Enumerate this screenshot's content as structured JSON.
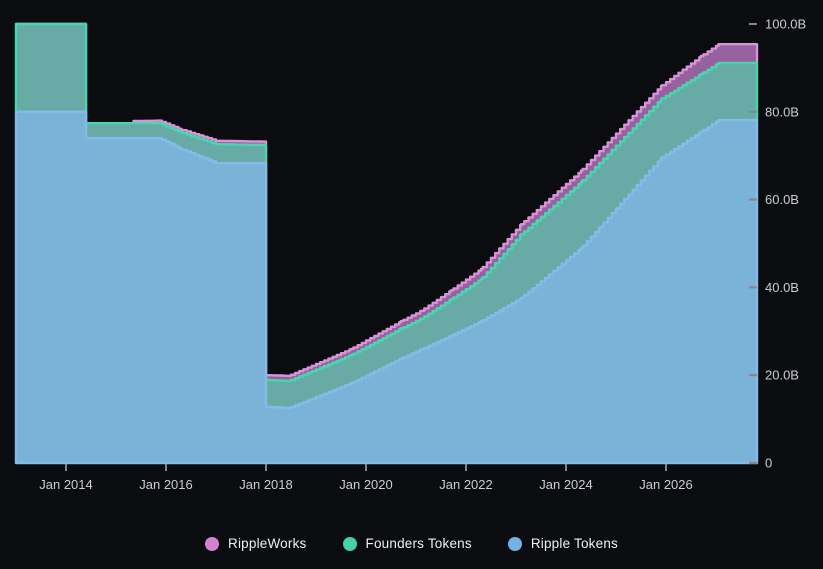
{
  "chart_data": {
    "type": "area",
    "stacked": true,
    "title": "",
    "background": "#0a0c10",
    "x_axis": {
      "range_years": [
        2013.0,
        2027.82
      ],
      "ticks": [
        {
          "t": 2014,
          "label": "Jan 2014"
        },
        {
          "t": 2016,
          "label": "Jan 2016"
        },
        {
          "t": 2018,
          "label": "Jan 2018"
        },
        {
          "t": 2020,
          "label": "Jan 2020"
        },
        {
          "t": 2022,
          "label": "Jan 2022"
        },
        {
          "t": 2024,
          "label": "Jan 2024"
        },
        {
          "t": 2026,
          "label": "Jan 2026"
        }
      ]
    },
    "y_axis": {
      "range": [
        0,
        105.5
      ],
      "unit": "tokens (billions)",
      "ticks": [
        {
          "v": 0,
          "label": "0"
        },
        {
          "v": 20,
          "label": "20.0B"
        },
        {
          "v": 40,
          "label": "40.0B"
        },
        {
          "v": 60,
          "label": "60.0B"
        },
        {
          "v": 80,
          "label": "80.0B"
        },
        {
          "v": 100,
          "label": "100.0B"
        }
      ]
    },
    "tick_mark_color": "#8c7f90",
    "legend": [
      {
        "label": "RippleWorks",
        "color": "#d583cf"
      },
      {
        "label": "Founders Tokens",
        "color": "#45d1a9"
      },
      {
        "label": "Ripple Tokens",
        "color": "#74b2e2"
      }
    ],
    "series_note": "points are [decimal_year, band_amount_in_billions]; series listed bottom-to-top of stack; step-like monthly release schedule",
    "series": [
      {
        "name": "Ripple Tokens",
        "fill": "#7ab2d8",
        "line": "#85bbe9",
        "points": [
          [
            2013.0,
            80.0
          ],
          [
            2014.4,
            80.0
          ],
          [
            2014.4,
            74.0
          ],
          [
            2015.85,
            74.0
          ],
          [
            2016.3,
            71.5
          ],
          [
            2017.0,
            68.3
          ],
          [
            2018.0,
            68.3
          ],
          [
            2018.0,
            12.8
          ],
          [
            2018.45,
            12.5
          ],
          [
            2019.7,
            18.2
          ],
          [
            2020.7,
            23.8
          ],
          [
            2021.7,
            29.0
          ],
          [
            2022.3,
            32.3
          ],
          [
            2023.1,
            37.6
          ],
          [
            2024.3,
            49.0
          ],
          [
            2025.9,
            69.5
          ],
          [
            2027.05,
            78.1
          ],
          [
            2027.82,
            78.1
          ]
        ]
      },
      {
        "name": "Founders Tokens",
        "fill": "#68aaa5",
        "line": "#47d6ad",
        "points": [
          [
            2013.0,
            20.0
          ],
          [
            2014.4,
            20.0
          ],
          [
            2014.4,
            3.4
          ],
          [
            2015.85,
            3.4
          ],
          [
            2017.0,
            4.3
          ],
          [
            2018.0,
            4.1
          ],
          [
            2018.0,
            6.1
          ],
          [
            2019.7,
            6.4
          ],
          [
            2021.1,
            7.0
          ],
          [
            2022.3,
            9.6
          ],
          [
            2023.1,
            14.5
          ],
          [
            2024.3,
            15.0
          ],
          [
            2025.9,
            13.4
          ],
          [
            2027.05,
            13.0
          ],
          [
            2027.82,
            13.0
          ]
        ]
      },
      {
        "name": "RippleWorks",
        "fill": "#96619e",
        "line": "#d794d8",
        "points": [
          [
            2013.0,
            0.0
          ],
          [
            2015.35,
            0.0
          ],
          [
            2015.35,
            0.5
          ],
          [
            2017.0,
            0.8
          ],
          [
            2018.0,
            0.8
          ],
          [
            2018.0,
            1.1
          ],
          [
            2019.7,
            1.4
          ],
          [
            2021.1,
            1.8
          ],
          [
            2022.3,
            2.3
          ],
          [
            2023.1,
            2.3
          ],
          [
            2025.9,
            3.0
          ],
          [
            2026.7,
            4.1
          ],
          [
            2027.05,
            4.3
          ],
          [
            2027.82,
            4.3
          ]
        ]
      }
    ]
  }
}
